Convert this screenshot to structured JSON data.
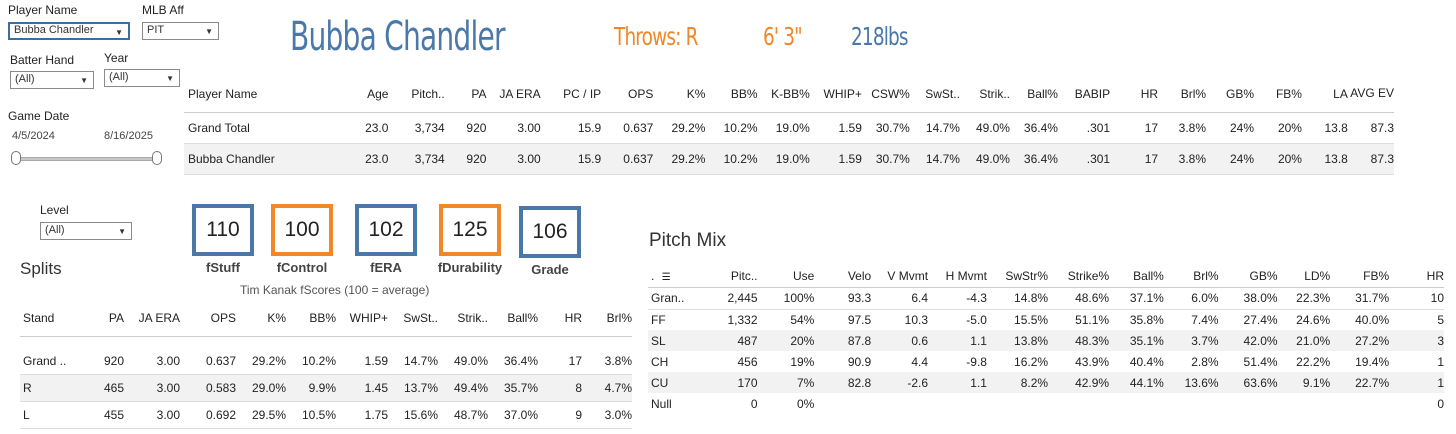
{
  "filters": {
    "player_name": {
      "label": "Player Name",
      "value": "Bubba Chandler"
    },
    "mlb_aff": {
      "label": "MLB Aff",
      "value": "PIT"
    },
    "batter_hand": {
      "label": "Batter Hand",
      "value": "(All)"
    },
    "year": {
      "label": "Year",
      "value": "(All)"
    },
    "game_date": {
      "label": "Game Date",
      "start": "4/5/2024",
      "end": "8/16/2025"
    },
    "level": {
      "label": "Level",
      "value": "(All)"
    }
  },
  "header": {
    "player": "Bubba Chandler",
    "throws": "Throws: R",
    "height": "6' 3\"",
    "weight": "218lbs",
    "colors": {
      "player": "#4a78a8",
      "throws": "#f0882a",
      "height": "#f0882a",
      "weight": "#4a78a8"
    }
  },
  "summary_table": {
    "columns": [
      "Player Name",
      "Age",
      "Pitch..",
      "PA",
      "JA ERA",
      "PC / IP",
      "OPS",
      "K%",
      "BB%",
      "K-BB%",
      "WHIP+",
      "CSW%",
      "SwSt..",
      "Strik..",
      "Ball%",
      "BABIP",
      "HR",
      "Brl%",
      "GB%",
      "FB%",
      "LA",
      "AVG EV"
    ],
    "rows": [
      [
        "Grand Total",
        "23.0",
        "3,734",
        "920",
        "3.00",
        "15.9",
        "0.637",
        "29.2%",
        "10.2%",
        "19.0%",
        "1.59",
        "30.7%",
        "14.7%",
        "49.0%",
        "36.4%",
        ".301",
        "17",
        "3.8%",
        "24%",
        "20%",
        "13.8",
        "87.3"
      ],
      [
        "Bubba Chandler",
        "23.0",
        "3,734",
        "920",
        "3.00",
        "15.9",
        "0.637",
        "29.2%",
        "10.2%",
        "19.0%",
        "1.59",
        "30.7%",
        "14.7%",
        "49.0%",
        "36.4%",
        ".301",
        "17",
        "3.8%",
        "24%",
        "20%",
        "13.8",
        "87.3"
      ]
    ]
  },
  "fscores": {
    "items": [
      {
        "value": "110",
        "label": "fStuff",
        "color": "#4a78a8"
      },
      {
        "value": "100",
        "label": "fControl",
        "color": "#f0882a"
      },
      {
        "value": "102",
        "label": "fERA",
        "color": "#4a78a8"
      },
      {
        "value": "125",
        "label": "fDurability",
        "color": "#f0882a"
      },
      {
        "value": "106",
        "label": "Grade",
        "color": "#4a78a8"
      }
    ],
    "caption": "Tim Kanak fScores (100 = average)"
  },
  "splits": {
    "title": "Splits",
    "columns": [
      "Stand",
      "PA",
      "JA ERA",
      "OPS",
      "K%",
      "BB%",
      "WHIP+",
      "SwSt..",
      "Strik..",
      "Ball%",
      "HR",
      "Brl%"
    ],
    "rows": [
      [
        "Grand ..",
        "920",
        "3.00",
        "0.637",
        "29.2%",
        "10.2%",
        "1.59",
        "14.7%",
        "49.0%",
        "36.4%",
        "17",
        "3.8%"
      ],
      [
        "R",
        "465",
        "3.00",
        "0.583",
        "29.0%",
        "9.9%",
        "1.45",
        "13.7%",
        "49.4%",
        "35.7%",
        "8",
        "4.7%"
      ],
      [
        "L",
        "455",
        "3.00",
        "0.692",
        "29.5%",
        "10.5%",
        "1.75",
        "15.6%",
        "48.7%",
        "37.0%",
        "9",
        "3.0%"
      ]
    ]
  },
  "pitch_mix": {
    "title": "Pitch Mix",
    "columns": [
      ".",
      "Pitc..",
      "Use",
      "Velo",
      "V Mvmt",
      "H Mvmt",
      "SwStr%",
      "Strike%",
      "Ball%",
      "Brl%",
      "GB%",
      "LD%",
      "FB%",
      "HR"
    ],
    "rows": [
      [
        "Gran..",
        "2,445",
        "100%",
        "93.3",
        "6.4",
        "-4.3",
        "14.8%",
        "48.6%",
        "37.1%",
        "6.0%",
        "38.0%",
        "22.3%",
        "31.7%",
        "10"
      ],
      [
        "FF",
        "1,332",
        "54%",
        "97.5",
        "10.3",
        "-5.0",
        "15.5%",
        "51.1%",
        "35.8%",
        "7.4%",
        "27.4%",
        "24.6%",
        "40.0%",
        "5"
      ],
      [
        "SL",
        "487",
        "20%",
        "87.8",
        "0.6",
        "1.1",
        "13.8%",
        "48.3%",
        "35.1%",
        "3.7%",
        "42.0%",
        "21.0%",
        "27.2%",
        "3"
      ],
      [
        "CH",
        "456",
        "19%",
        "90.9",
        "4.4",
        "-9.8",
        "16.2%",
        "43.9%",
        "40.4%",
        "2.8%",
        "51.4%",
        "22.2%",
        "19.4%",
        "1"
      ],
      [
        "CU",
        "170",
        "7%",
        "82.8",
        "-2.6",
        "1.1",
        "8.2%",
        "42.9%",
        "44.1%",
        "13.6%",
        "63.6%",
        "9.1%",
        "22.7%",
        "1"
      ],
      [
        "Null",
        "0",
        "0%",
        "",
        "",
        "",
        "",
        "",
        "",
        "",
        "",
        "",
        "",
        "0"
      ]
    ]
  }
}
